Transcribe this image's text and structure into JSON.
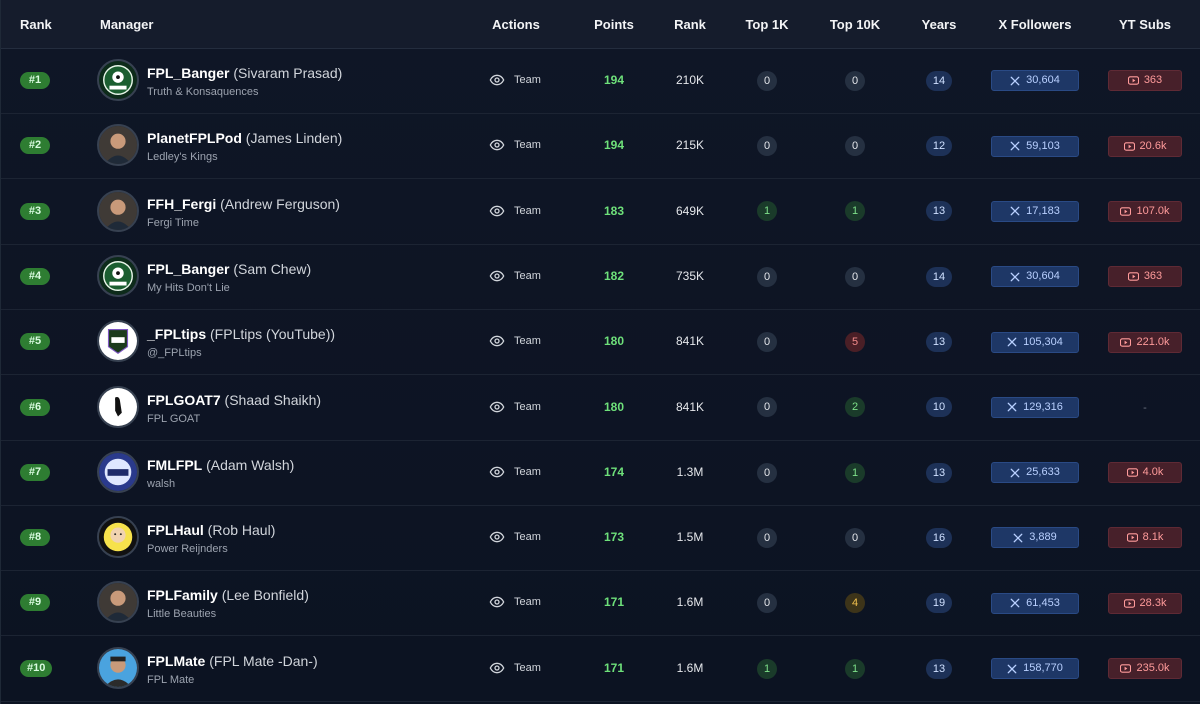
{
  "headers": {
    "rank": "Rank",
    "manager": "Manager",
    "actions": "Actions",
    "points": "Points",
    "overall_rank": "Rank",
    "top1k": "Top 1K",
    "top10k": "Top 10K",
    "years": "Years",
    "x_followers": "X Followers",
    "yt_subs": "YT Subs"
  },
  "colors": {
    "points_green": "#6ee07a",
    "rank_badge_green": "#2e7d32",
    "x_blue": "#1e3766",
    "yt_red": "#47202a"
  },
  "rows": [
    {
      "rank": "#1",
      "handle": "FPL_Banger",
      "real_name": "(Sivaram Prasad)",
      "team": "Truth & Konsaquences",
      "action": "Team",
      "points": "194",
      "overall_rank": "210K",
      "top1k": "0",
      "top10k": "0",
      "years": "14",
      "x_followers": "30,604",
      "yt_subs": "363",
      "avatar": "fpl-banger-logo"
    },
    {
      "rank": "#2",
      "handle": "PlanetFPLPod",
      "real_name": "(James Linden)",
      "team": "Ledley's Kings",
      "action": "Team",
      "points": "194",
      "overall_rank": "215K",
      "top1k": "0",
      "top10k": "0",
      "years": "12",
      "x_followers": "59,103",
      "yt_subs": "20.6k",
      "avatar": "person-photo"
    },
    {
      "rank": "#3",
      "handle": "FFH_Fergi",
      "real_name": "(Andrew Ferguson)",
      "team": "Fergi Time",
      "action": "Team",
      "points": "183",
      "overall_rank": "649K",
      "top1k": "1",
      "top10k": "1",
      "years": "13",
      "x_followers": "17,183",
      "yt_subs": "107.0k",
      "avatar": "person-photo"
    },
    {
      "rank": "#4",
      "handle": "FPL_Banger",
      "real_name": "(Sam Chew)",
      "team": "My Hits Don't Lie",
      "action": "Team",
      "points": "182",
      "overall_rank": "735K",
      "top1k": "0",
      "top10k": "0",
      "years": "14",
      "x_followers": "30,604",
      "yt_subs": "363",
      "avatar": "fpl-banger-logo"
    },
    {
      "rank": "#5",
      "handle": "_FPLtips",
      "real_name": "(FPLtips (YouTube))",
      "team": "@_FPLtips",
      "action": "Team",
      "points": "180",
      "overall_rank": "841K",
      "top1k": "0",
      "top10k": "5",
      "years": "13",
      "x_followers": "105,304",
      "yt_subs": "221.0k",
      "avatar": "fpl-tips-logo"
    },
    {
      "rank": "#6",
      "handle": "FPLGOAT7",
      "real_name": "(Shaad Shaikh)",
      "team": "FPL GOAT",
      "action": "Team",
      "points": "180",
      "overall_rank": "841K",
      "top1k": "0",
      "top10k": "2",
      "years": "10",
      "x_followers": "129,316",
      "yt_subs": "-",
      "avatar": "goat-logo"
    },
    {
      "rank": "#7",
      "handle": "FMLFPL",
      "real_name": "(Adam Walsh)",
      "team": "walsh",
      "action": "Team",
      "points": "174",
      "overall_rank": "1.3M",
      "top1k": "0",
      "top10k": "1",
      "years": "13",
      "x_followers": "25,633",
      "yt_subs": "4.0k",
      "avatar": "fml-logo"
    },
    {
      "rank": "#8",
      "handle": "FPLHaul",
      "real_name": "(Rob Haul)",
      "team": "Power Reijnders",
      "action": "Team",
      "points": "173",
      "overall_rank": "1.5M",
      "top1k": "0",
      "top10k": "0",
      "years": "16",
      "x_followers": "3,889",
      "yt_subs": "8.1k",
      "avatar": "cartoon-face"
    },
    {
      "rank": "#9",
      "handle": "FPLFamily",
      "real_name": "(Lee Bonfield)",
      "team": "Little Beauties",
      "action": "Team",
      "points": "171",
      "overall_rank": "1.6M",
      "top1k": "0",
      "top10k": "4",
      "years": "19",
      "x_followers": "61,453",
      "yt_subs": "28.3k",
      "avatar": "person-photo"
    },
    {
      "rank": "#10",
      "handle": "FPLMate",
      "real_name": "(FPL Mate -Dan-)",
      "team": "FPL Mate",
      "action": "Team",
      "points": "171",
      "overall_rank": "1.6M",
      "top1k": "1",
      "top10k": "1",
      "years": "13",
      "x_followers": "158,770",
      "yt_subs": "235.0k",
      "avatar": "cartoon-person"
    }
  ]
}
